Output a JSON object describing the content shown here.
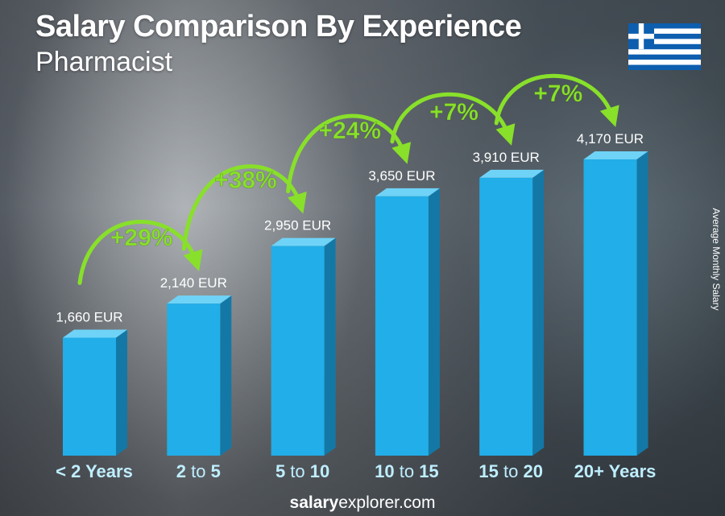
{
  "header": {
    "title": "Salary Comparison By Experience",
    "subtitle": "Pharmacist"
  },
  "side_label": "Average Monthly Salary",
  "footer": {
    "brand_bold": "salary",
    "brand_rest": "explorer.com"
  },
  "flag": {
    "country": "Greece",
    "colors": {
      "blue": "#0d5eaf",
      "white": "#ffffff"
    }
  },
  "colors": {
    "bar_front": "#22aee8",
    "bar_side": "#1478a6",
    "bar_top": "#6fd3f7",
    "accent_green": "#88e02a",
    "category_label": "#bfeeff"
  },
  "chart_data": {
    "type": "bar",
    "title": "Salary Comparison By Experience",
    "subtitle": "Pharmacist",
    "ylabel": "Average Monthly Salary",
    "unit": "EUR",
    "categories": [
      "< 2 Years",
      "2 to 5",
      "5 to 10",
      "10 to 15",
      "15 to 20",
      "20+ Years"
    ],
    "category_parts": [
      [
        {
          "t": "< 2 Years",
          "b": true
        }
      ],
      [
        {
          "t": "2",
          "b": true
        },
        {
          "t": " to ",
          "b": false
        },
        {
          "t": "5",
          "b": true
        }
      ],
      [
        {
          "t": "5",
          "b": true
        },
        {
          "t": " to ",
          "b": false
        },
        {
          "t": "10",
          "b": true
        }
      ],
      [
        {
          "t": "10",
          "b": true
        },
        {
          "t": " to ",
          "b": false
        },
        {
          "t": "15",
          "b": true
        }
      ],
      [
        {
          "t": "15",
          "b": true
        },
        {
          "t": " to ",
          "b": false
        },
        {
          "t": "20",
          "b": true
        }
      ],
      [
        {
          "t": "20+ Years",
          "b": true
        }
      ]
    ],
    "values": [
      1660,
      2140,
      2950,
      3650,
      3910,
      4170
    ],
    "value_labels": [
      "1,660 EUR",
      "2,140 EUR",
      "2,950 EUR",
      "3,650 EUR",
      "3,910 EUR",
      "4,170 EUR"
    ],
    "increases": [
      "+29%",
      "+38%",
      "+24%",
      "+7%",
      "+7%"
    ]
  }
}
